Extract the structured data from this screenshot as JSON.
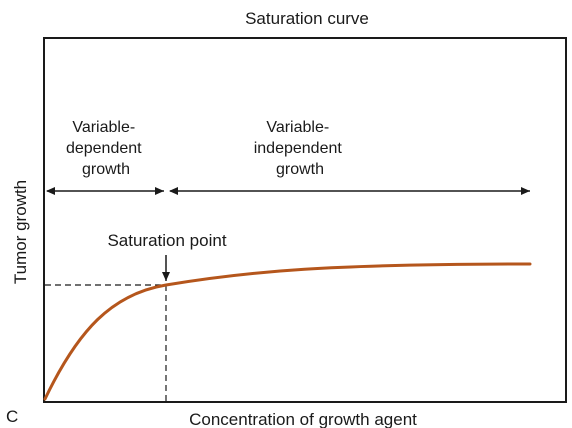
{
  "title": "Saturation curve",
  "xlabel": "Concentration of growth agent",
  "ylabel": "Tumor growth",
  "panel_letter": "C",
  "regions": {
    "dependent": [
      "Variable-",
      "dependent",
      "growth"
    ],
    "independent": [
      "Variable-",
      "independent",
      "growth"
    ]
  },
  "saturation_label": "Saturation point",
  "colors": {
    "curve": "#b5561c",
    "frame": "#1a1a1a",
    "text": "#1a1a1a"
  }
}
